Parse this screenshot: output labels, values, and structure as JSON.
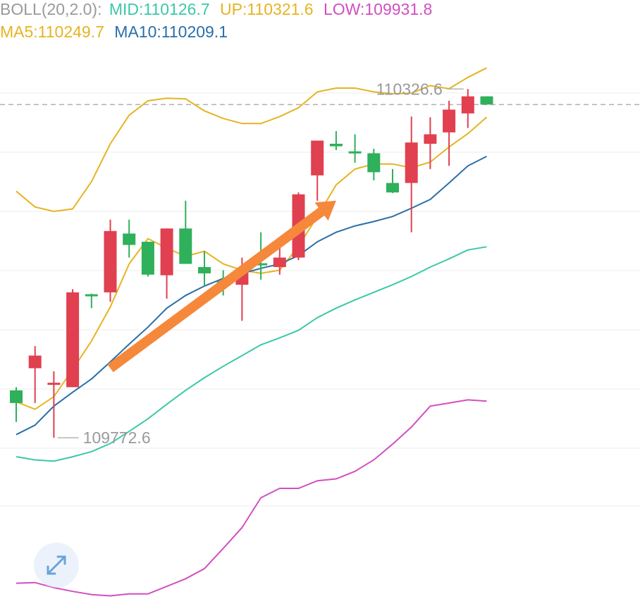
{
  "indicator_bar": {
    "boll_label": "BOLL(20,2.0):",
    "mid": "MID:110126.7",
    "up": "UP:110321.6",
    "low": "LOW:109931.8",
    "ma5": "MA5:110249.7",
    "ma10": "MA10:110209.1"
  },
  "colors": {
    "boll_label": "#9a9a9a",
    "mid": "#3cc8a8",
    "up": "#e6b422",
    "low": "#d24fc0",
    "ma5": "#e6b422",
    "ma10": "#2a6fa8",
    "up_candle": "#e0404f",
    "down_candle": "#2fb05a",
    "arrow": "#f5883a",
    "grid": "#ececec",
    "current_price_line": "#b0b0b0"
  },
  "icons": {
    "expand": "expand-arrows-icon"
  },
  "chart_data": {
    "type": "candlestick",
    "annotations": {
      "high_label": "110326.6",
      "low_label": "109772.6"
    },
    "candles": [
      {
        "open": 109850,
        "close": 109830,
        "high": 109855,
        "low": 109800
      },
      {
        "open": 109885,
        "close": 109905,
        "high": 109920,
        "low": 109830
      },
      {
        "open": 109860,
        "close": 109862,
        "high": 109880,
        "low": 109775
      },
      {
        "open": 109855,
        "close": 110005,
        "high": 110010,
        "low": 109855
      },
      {
        "open": 110002,
        "close": 110000,
        "high": 110003,
        "low": 109980
      },
      {
        "open": 110005,
        "close": 110102,
        "high": 110120,
        "low": 109990
      },
      {
        "open": 110098,
        "close": 110080,
        "high": 110120,
        "low": 110060
      },
      {
        "open": 110085,
        "close": 110033,
        "high": 110085,
        "low": 110030
      },
      {
        "open": 110032,
        "close": 110106,
        "high": 110106,
        "low": 109995
      },
      {
        "open": 110106,
        "close": 110050,
        "high": 110150,
        "low": 110050
      },
      {
        "open": 110045,
        "close": 110035,
        "high": 110070,
        "low": 110015
      },
      {
        "open": 110023,
        "close": 110015,
        "high": 110040,
        "low": 110000
      },
      {
        "open": 110017,
        "close": 110038,
        "high": 110060,
        "low": 109960
      },
      {
        "open": 110051,
        "close": 110049,
        "high": 110100,
        "low": 110025
      },
      {
        "open": 110045,
        "close": 110060,
        "high": 110080,
        "low": 110033
      },
      {
        "open": 110060,
        "close": 110160,
        "high": 110163,
        "low": 110056
      },
      {
        "open": 110190,
        "close": 110245,
        "high": 110245,
        "low": 110150
      },
      {
        "open": 110240,
        "close": 110236,
        "high": 110260,
        "low": 110230
      },
      {
        "open": 110228,
        "close": 110226,
        "high": 110255,
        "low": 110210
      },
      {
        "open": 110225,
        "close": 110195,
        "high": 110232,
        "low": 110182
      },
      {
        "open": 110178,
        "close": 110163,
        "high": 110200,
        "low": 110162
      },
      {
        "open": 110178,
        "close": 110242,
        "high": 110283,
        "low": 110100
      },
      {
        "open": 110240,
        "close": 110255,
        "high": 110282,
        "low": 110200
      },
      {
        "open": 110258,
        "close": 110294,
        "high": 110308,
        "low": 110205
      },
      {
        "open": 110288,
        "close": 110315,
        "high": 110326.6,
        "low": 110265
      },
      {
        "open": 110315,
        "close": 110302,
        "high": 110315,
        "low": 110302
      }
    ],
    "series": [
      {
        "name": "UP",
        "color_key": "up",
        "values": [
          110165,
          110140,
          110133,
          110137,
          110180,
          110240,
          110285,
          110308,
          110312,
          110311,
          110292,
          110280,
          110272,
          110272,
          110283,
          110297,
          110322,
          110328,
          110328,
          110322,
          110319,
          110320,
          110332,
          110327,
          110345,
          110360
        ]
      },
      {
        "open_note": null,
        "name": "MA5",
        "color_key": "ma5",
        "values": [
          109832,
          109820,
          109840,
          109883,
          109928,
          109982,
          110050,
          110090,
          110075,
          110062,
          110070,
          110050,
          110040,
          110035,
          110040,
          110078,
          110125,
          110175,
          110200,
          110208,
          110208,
          110202,
          110211,
          110235,
          110256,
          110282
        ]
      },
      {
        "name": "MA10",
        "color_key": "ma10",
        "values": [
          109780,
          109795,
          109825,
          109847,
          109868,
          109895,
          109923,
          109950,
          109980,
          110000,
          110015,
          110027,
          110035,
          110043,
          110050,
          110063,
          110085,
          110100,
          110110,
          110117,
          110125,
          110138,
          110152,
          110178,
          110205,
          110220
        ]
      },
      {
        "name": "MID",
        "color_key": "mid",
        "values": [
          109745,
          109740,
          109738,
          109745,
          109753,
          109766,
          109785,
          109805,
          109828,
          109850,
          109870,
          109888,
          109905,
          109922,
          109933,
          109945,
          109965,
          109980,
          109993,
          110005,
          110017,
          110030,
          110045,
          110058,
          110072,
          110077
        ]
      },
      {
        "name": "LOW",
        "color_key": "low",
        "values": [
          109545,
          109546,
          109538,
          109532,
          109527,
          109525,
          109528,
          109528,
          109540,
          109552,
          109568,
          109600,
          109633,
          109680,
          109695,
          109695,
          109707,
          109710,
          109722,
          109740,
          109765,
          109792,
          109825,
          109830,
          109835,
          109833
        ]
      }
    ],
    "current_price": 110302,
    "y_range": [
      109520,
      110347
    ]
  }
}
